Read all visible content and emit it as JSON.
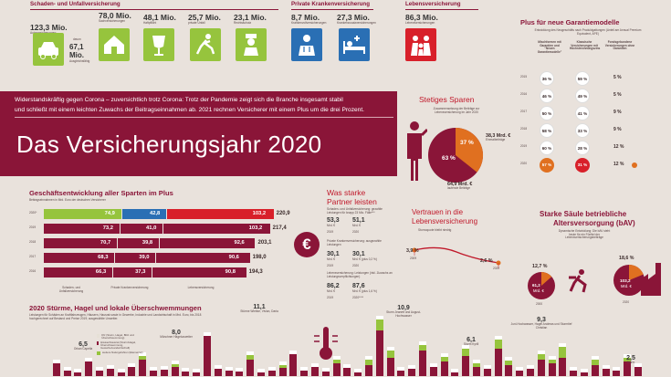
{
  "top": {
    "sach": {
      "title": "Schaden- und Unfallversicherung",
      "items": [
        {
          "v": "123,3 Mio.",
          "l": "Autoversicherungen"
        },
        {
          "v": "78,0 Mio.",
          "l": "Sachversicherungen"
        },
        {
          "v": "48,1 Mio.",
          "l": "Haftpflicht"
        },
        {
          "v": "25,7 Mio.",
          "l": "private Unfall"
        },
        {
          "v": "23,1 Mio.",
          "l": "Rechtsschutz"
        }
      ],
      "car_sub_1": "davon",
      "car_sub_2": "67,1",
      "car_sub_3": "Mio.",
      "car_sub_4": "Ausgleichsfähig"
    },
    "kranken": {
      "title": "Private Krankenversicherung",
      "items": [
        {
          "v": "8,7 Mio.",
          "l": "Krankenvollversicherungen"
        },
        {
          "v": "27,3 Mio.",
          "l": "Krankenzusatzversicherungen"
        }
      ]
    },
    "leben": {
      "title": "Lebensversicherung",
      "items": [
        {
          "v": "86,3 Mio.",
          "l": "Lebensversicherungen"
        }
      ]
    }
  },
  "intro": {
    "line1": "Widerstandskräftig gegen Corona – zuversichtlich trotz Corona: Trotz der Pandemie zeigt sich die Branche insgesamt stabil",
    "line2": "und schließt mit einem leichten Zuwachs der Beitragseinnahmen ab. 2021 rechnen Versicherer mit einem Plus um die drei Prozent."
  },
  "headline": "Das Versicherungsjahr 2020",
  "sparen": {
    "title": "Stetiges Sparen",
    "sub": "Zusammensetzung der Beiträge zur Lebensversicherung im Jahr 2020",
    "big_pct": "63 %",
    "small_pct": "37 %",
    "single_v": "38,3 Mrd. €",
    "single_l": "Einmalbeiträge",
    "lauf_v": "64,9 Mrd. €",
    "lauf_l": "laufende Beiträge"
  },
  "garantie": {
    "title": "Plus für neue Garantiemodelle",
    "sub": "Entwicklung des Neugeschäfts nach Produktgattungen (Anteil am Annual Premium Equivalent, APE)",
    "col1": "Mischformen mit Garantien und \"Neuen Garantiemodelle\"",
    "col2": "Klassische Versicherungen mit Höchstrechnungszins",
    "col3": "Fondsgebundene Versicherungen ohne Garantien",
    "rows": [
      {
        "year": "2015",
        "a": "36 %",
        "b": "59 %",
        "c": "5 %"
      },
      {
        "year": "2016",
        "a": "46 %",
        "b": "49 %",
        "c": "5 %"
      },
      {
        "year": "2017",
        "a": "50 %",
        "b": "41 %",
        "c": "9 %"
      },
      {
        "year": "2018",
        "a": "58 %",
        "b": "33 %",
        "c": "9 %"
      },
      {
        "year": "2019",
        "a": "60 %",
        "b": "28 %",
        "c": "12 %"
      },
      {
        "year": "2020",
        "a": "57 %",
        "b": "31 %",
        "c": "12 %"
      }
    ]
  },
  "geschaeft": {
    "title": "Geschäftsentwicklung aller Sparten im Plus",
    "sub": "Beitragseinnahmen in Mrd. Euro der deutschen Versicherer",
    "rows": [
      {
        "year": "2020*",
        "a": "74,9",
        "b": "42,8",
        "c": "103,2",
        "t": "220,9"
      },
      {
        "year": "2019",
        "a": "73,2",
        "b": "41,0",
        "c": "103,2",
        "t": "217,4"
      },
      {
        "year": "2018",
        "a": "70,7",
        "b": "39,8",
        "c": "92,6",
        "t": "203,1"
      },
      {
        "year": "2017",
        "a": "68,3",
        "b": "39,0",
        "c": "90,6",
        "t": "198,0"
      },
      {
        "year": "2016",
        "a": "66,3",
        "b": "37,3",
        "c": "90,8",
        "t": "194,3"
      }
    ],
    "leg1": "Schaden- und Unfallversicherung",
    "leg2": "Private Krankenversicherung",
    "leg3": "Lebensversicherung"
  },
  "partner": {
    "title1": "Was starke",
    "title2": "Partner leisten",
    "s1": "Schaden- und Unfallversicherung: gezahlte Leistungen für knapp 23 Mio. Fälle***",
    "s1a": "53,3",
    "s1b": "51,1",
    "s1u": "Mrd. €",
    "s1y1": "2019",
    "s1y2": "2020",
    "s2": "Private Krankenversicherung: ausgezahlte Leistungen",
    "s2a": "30,1",
    "s2b": "30,1",
    "s2ua": "Mrd. €",
    "s2ub": "Mrd. € (plus 0,2 %)",
    "s2y1": "2019",
    "s2y2": "2020",
    "s3": "Lebensversicherung: Leistungen (inkl. Zuwachs an Leistungsverpflichtungen)",
    "s3a": "86,2",
    "s3b": "87,6",
    "s3ua": "Mrd. €",
    "s3ub": "Mrd. € (plus 1,6 %)",
    "s3y1": "2019",
    "s3y2": "2020****"
  },
  "vertrauen": {
    "title1": "Vertrauen in die",
    "title2": "Lebensversicherung",
    "sub": "Stornoquote bleibt niedrig",
    "v1": "3,9 %",
    "y1": "2009",
    "v2": "2,6 %",
    "y2": "2020"
  },
  "bav": {
    "title1": "Starke Säule betriebliche",
    "title2": "Altersversorgung (bAV)",
    "sub": "Dynamische Entwicklung: Die bAV steht heute für ein Fünftel der Lebensversicherungsbeiträge",
    "p1": "12,7 %",
    "v1a": "61,2",
    "v1b": "Mrd. €",
    "y1": "2000",
    "p2": "18,6 %",
    "v2a": "103,2",
    "v2b": "Mrd. €",
    "y2": "2020"
  },
  "storm": {
    "title": "2020 Stürme, Hagel und lokale Überschwemmungen",
    "sub": "Leistungen für Schäden an Kraftfahrzeugen, Häusern, Hausrat sowie in Gewerbe, Industrie und Landwirtschaft in Mrd. Euro, bis 2018 hochgerechnet auf Bestand und Preise 2019; ausgewählte Unwetter.",
    "legend": [
      "Kfz (Sturm, Hagel, Blitz und Überschwemmung)",
      "Häuser/Hausrat (Sturm/Hagel, Überschwemmung, Gewerbe/Landwirtschaft)",
      "weitere Naturgefahren (Elementar)"
    ],
    "labels": [
      {
        "v": "6,5",
        "t": "Orkan Capella"
      },
      {
        "v": "8,0",
        "t": "Münchner Hagelunwetter"
      },
      {
        "v": "11,1",
        "t": "Stürme Wiebke, Vivian, Daria"
      },
      {
        "v": "10,9",
        "t": "Sturm Jeanett und August-Hochwasser"
      },
      {
        "v": "6,1",
        "t": "Sturm Kyrill"
      },
      {
        "v": "9,3",
        "t": "Juni-Hochwasser, Hagel Andreas und Sturmtief Christian"
      },
      {
        "v": "2,5",
        "t": "Sturm"
      }
    ]
  }
}
